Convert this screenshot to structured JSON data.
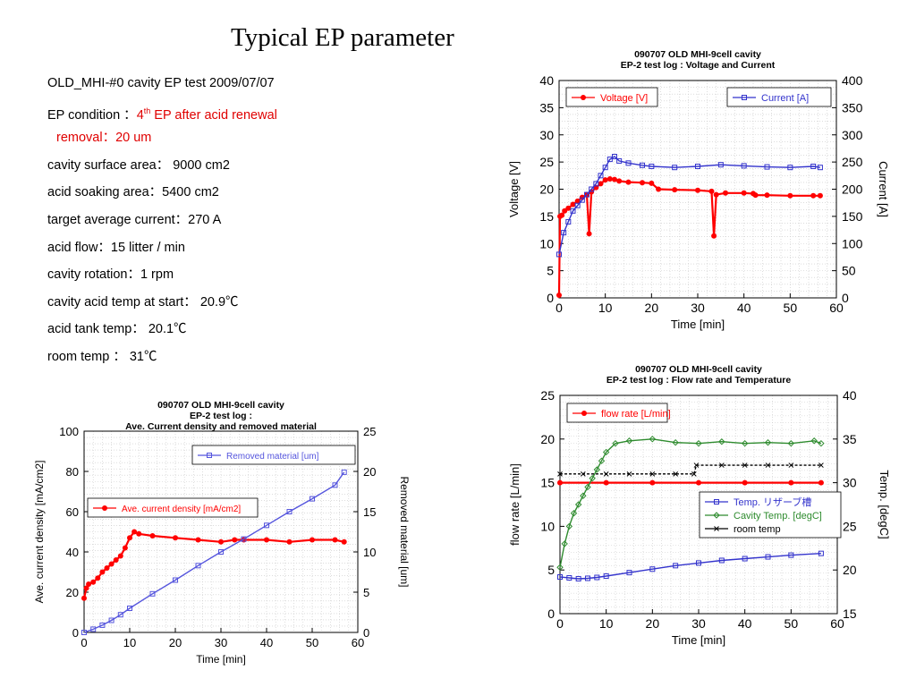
{
  "slide": {
    "title": "Typical EP parameter",
    "params": [
      "OLD_MHI-#0 cavity EP test   2009/07/07",
      "4",
      "removal：20 um",
      "cavity surface area：  9000 cm2",
      "acid soaking area：5400 cm2",
      "target average current：270   A",
      "acid flow：15 litter / min",
      "cavity rotation：1 rpm",
      "cavity acid temp at start：   20.9℃",
      "acid tank temp：   20.1℃",
      "room temp ：   31℃"
    ],
    "ep_condition": {
      "label": "EP condition ：",
      "sup": "th",
      "rest": " EP after acid renewal"
    }
  },
  "chart_data": [
    {
      "type": "line",
      "title": "090707 OLD MHI-9cell cavity",
      "subtitle": "EP-2 test log : Voltage and Current",
      "xlabel": "Time [min]",
      "ylabel": "Voltage [V]",
      "y2label": "Current [A]",
      "xlim": [
        0,
        60
      ],
      "ylim": [
        0,
        40
      ],
      "y2lim": [
        0,
        400
      ],
      "xticks": [
        0,
        10,
        20,
        30,
        40,
        50,
        60
      ],
      "yticks": [
        0,
        5,
        10,
        15,
        20,
        25,
        30,
        35,
        40
      ],
      "y2ticks": [
        0,
        50,
        100,
        150,
        200,
        250,
        300,
        350,
        400
      ],
      "grid": true,
      "legend_left": "top-left",
      "legend_right": "top-right",
      "series": [
        {
          "name": "Voltage [V]",
          "axis": "left",
          "color": "#ff0000",
          "marker": "dot",
          "x": [
            0,
            0.2,
            0.6,
            1.2,
            2,
            3,
            4,
            5,
            6,
            6.5,
            7,
            8,
            9,
            10,
            11,
            12,
            13,
            15,
            18,
            20,
            21.5,
            25,
            30,
            33,
            33.5,
            34,
            36,
            40,
            42,
            42.5,
            45,
            50,
            55,
            56.5
          ],
          "y": [
            0.5,
            15,
            15.2,
            16,
            16.5,
            17.2,
            17.8,
            18.5,
            19,
            11.8,
            19.5,
            20.3,
            21,
            21.7,
            21.9,
            21.8,
            21.5,
            21.3,
            21.2,
            21.1,
            20,
            19.9,
            19.8,
            19.6,
            11.4,
            19,
            19.3,
            19.3,
            19.2,
            18.9,
            18.9,
            18.8,
            18.8,
            18.8
          ]
        },
        {
          "name": "Current [A]",
          "axis": "right",
          "color": "#3333cc",
          "marker": "square",
          "x": [
            0,
            1,
            2,
            3,
            4,
            5,
            6,
            7,
            8,
            9,
            10,
            11,
            12,
            13,
            15,
            18,
            20,
            25,
            30,
            35,
            40,
            45,
            50,
            55,
            56.5
          ],
          "y": [
            80,
            120,
            140,
            160,
            170,
            180,
            190,
            200,
            210,
            225,
            240,
            255,
            260,
            252,
            248,
            244,
            242,
            240,
            242,
            245,
            243,
            241,
            240,
            242,
            240
          ]
        }
      ]
    },
    {
      "type": "line",
      "title": "090707 OLD MHI-9cell cavity",
      "subtitle": "EP-2 test log : Flow rate and Temperature",
      "xlabel": "Time [min]",
      "ylabel": "flow rate [L/min]",
      "y2label": "Temp. [degC]",
      "xlim": [
        0,
        60
      ],
      "ylim": [
        0,
        25
      ],
      "y2lim": [
        15,
        40
      ],
      "xticks": [
        0,
        10,
        20,
        30,
        40,
        50,
        60
      ],
      "yticks": [
        0,
        5,
        10,
        15,
        20,
        25
      ],
      "y2ticks": [
        15,
        20,
        25,
        30,
        35,
        40
      ],
      "grid": true,
      "legend_left": "top-left",
      "legend_right": "bottom-right",
      "series": [
        {
          "name": "flow rate [L/min]",
          "axis": "left",
          "color": "#ff0000",
          "marker": "dot",
          "x": [
            0,
            10,
            20,
            30,
            40,
            50,
            56.5
          ],
          "y": [
            15,
            15,
            15,
            15,
            15,
            15,
            15
          ]
        },
        {
          "name": "Temp. リザーブ槽",
          "axis": "right",
          "color": "#3333cc",
          "marker": "square",
          "x": [
            0,
            2,
            4,
            6,
            8,
            10,
            15,
            20,
            25,
            30,
            35,
            40,
            45,
            50,
            56.5
          ],
          "y": [
            19.2,
            19.1,
            19,
            19.05,
            19.15,
            19.3,
            19.7,
            20.1,
            20.5,
            20.8,
            21.1,
            21.3,
            21.5,
            21.7,
            21.9
          ]
        },
        {
          "name": "Cavity Temp. [degC]",
          "axis": "right",
          "color": "#2e8b2e",
          "marker": "diamond",
          "x": [
            0,
            1,
            2,
            3,
            4,
            5,
            6,
            7,
            8,
            9,
            10,
            12,
            15,
            20,
            25,
            30,
            35,
            40,
            45,
            50,
            55,
            56.5
          ],
          "y": [
            20.3,
            23,
            25,
            26.5,
            27.5,
            28.5,
            29.5,
            30.5,
            31.5,
            32.5,
            33.5,
            34.5,
            34.8,
            35,
            34.6,
            34.5,
            34.7,
            34.5,
            34.6,
            34.5,
            34.8,
            34.5
          ]
        },
        {
          "name": "room temp",
          "axis": "right",
          "color": "#000000",
          "marker": "x",
          "x": [
            0,
            5,
            10,
            15,
            20,
            25,
            29,
            29.5,
            35,
            40,
            45,
            50,
            56.5
          ],
          "y": [
            31,
            31,
            31,
            31,
            31,
            31,
            31,
            32,
            32,
            32,
            32,
            32,
            32
          ]
        }
      ]
    },
    {
      "type": "line",
      "title": "090707 OLD MHI-9cell cavity",
      "subtitle": "EP-2 test log :",
      "subtitle2": "Ave. Current density and removed material",
      "xlabel": "Time [min]",
      "ylabel": "Ave. current density [mA/cm2]",
      "y2label": "Removed material [um]",
      "xlim": [
        0,
        60
      ],
      "ylim": [
        0,
        100
      ],
      "y2lim": [
        0,
        25
      ],
      "xticks": [
        0,
        10,
        20,
        30,
        40,
        50,
        60
      ],
      "yticks": [
        0,
        20,
        40,
        60,
        80,
        100
      ],
      "y2ticks": [
        0,
        5,
        10,
        15,
        20,
        25
      ],
      "grid": true,
      "legend_left": "middle-left",
      "legend_right": "top-right",
      "series": [
        {
          "name": "Ave. current density [mA/cm2]",
          "axis": "left",
          "color": "#ff0000",
          "marker": "dot",
          "x": [
            0,
            0.5,
            1,
            2,
            3,
            4,
            5,
            6,
            7,
            8,
            9,
            10,
            11,
            12,
            15,
            20,
            25,
            30,
            33,
            35,
            40,
            45,
            50,
            55,
            57
          ],
          "y": [
            17,
            22,
            24,
            25,
            27,
            30,
            32,
            34,
            36,
            38,
            42,
            47,
            50,
            49,
            48,
            47,
            46,
            45,
            46,
            46,
            46,
            45,
            46,
            46,
            45
          ]
        },
        {
          "name": "Removed material [um]",
          "axis": "right",
          "color": "#5555dd",
          "marker": "square",
          "x": [
            0,
            2,
            4,
            6,
            8,
            10,
            15,
            20,
            25,
            30,
            35,
            40,
            45,
            50,
            55,
            57
          ],
          "y": [
            0,
            0.4,
            0.9,
            1.5,
            2.2,
            3,
            4.8,
            6.5,
            8.3,
            10,
            11.6,
            13.3,
            15,
            16.6,
            18.3,
            19.9
          ]
        }
      ]
    }
  ]
}
